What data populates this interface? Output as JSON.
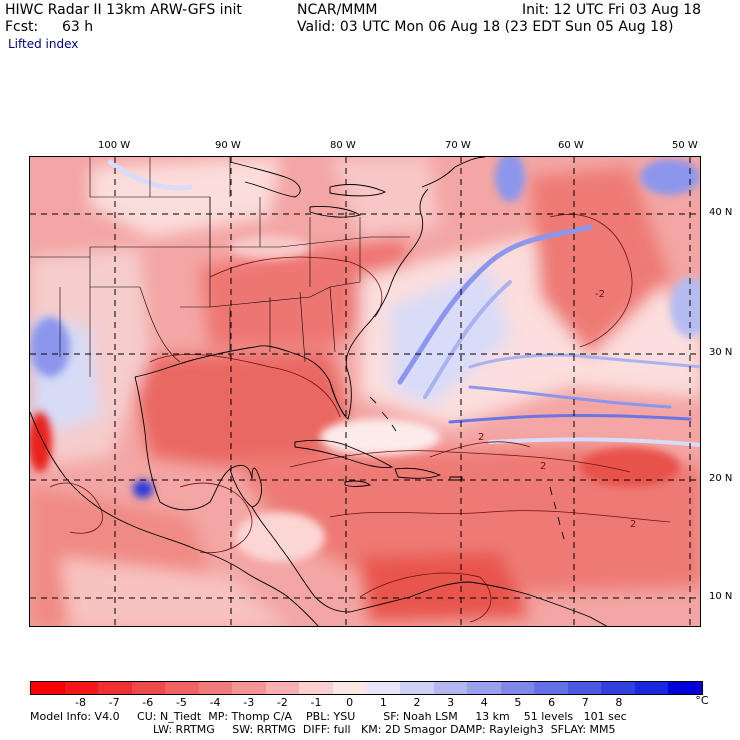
{
  "header": {
    "title": "HIWC Radar II 13km ARW-GFS init",
    "org": "NCAR/MMM",
    "init": "Init: 12 UTC Fri 03 Aug 18",
    "fcst_label": "Fcst:",
    "fcst_value": "63 h",
    "valid": "Valid: 03 UTC Mon 06 Aug 18 (23 EDT Sun 05 Aug 18)",
    "field": "Lifted index"
  },
  "map": {
    "lon_labels": [
      "100 W",
      "90 W",
      "80 W",
      "70 W",
      "60 W",
      "50 W"
    ],
    "lat_labels": [
      "40 N",
      "30 N",
      "20 N",
      "10 N"
    ],
    "contour_labels": [
      "2",
      "2",
      "2",
      "-2"
    ],
    "colors": {
      "strong_negative": "#e8201c",
      "moderate_negative": "#f0807a",
      "weak_negative": "#fbd2d0",
      "weak_positive": "#d8dcf8",
      "moderate_positive": "#8c96ec",
      "strong_positive": "#2a3ad8",
      "land_lines": "#000000",
      "grid_lines": "#000000"
    }
  },
  "colorbar": {
    "labels": [
      "-8",
      "-7",
      "-6",
      "-5",
      "-4",
      "-3",
      "-2",
      "-1",
      "0",
      "1",
      "2",
      "3",
      "4",
      "5",
      "6",
      "7",
      "8"
    ],
    "unit": "°C",
    "colors": [
      "#ff0000",
      "#f61818",
      "#f03030",
      "#ee4a4a",
      "#f06464",
      "#f27c7c",
      "#f49494",
      "#f8b0b0",
      "#fcd0d0",
      "#fde8e8",
      "#e8e8fc",
      "#d0d2f8",
      "#b4b8f2",
      "#9aa0ee",
      "#8088ea",
      "#6470e6",
      "#4a58e2",
      "#3040de",
      "#1828dc",
      "#0000d8"
    ]
  },
  "footer": {
    "line1": "Model Info: V4.0     CU: N_Tiedt  MP: Thomp C/A    PBL: YSU        SF: Noah LSM     13 km    51 levels   101 sec",
    "line2": "LW: RRTMG     SW: RRTMG  DIFF: full   KM: 2D Smagor DAMP: Rayleigh3  SFLAY: MM5"
  }
}
